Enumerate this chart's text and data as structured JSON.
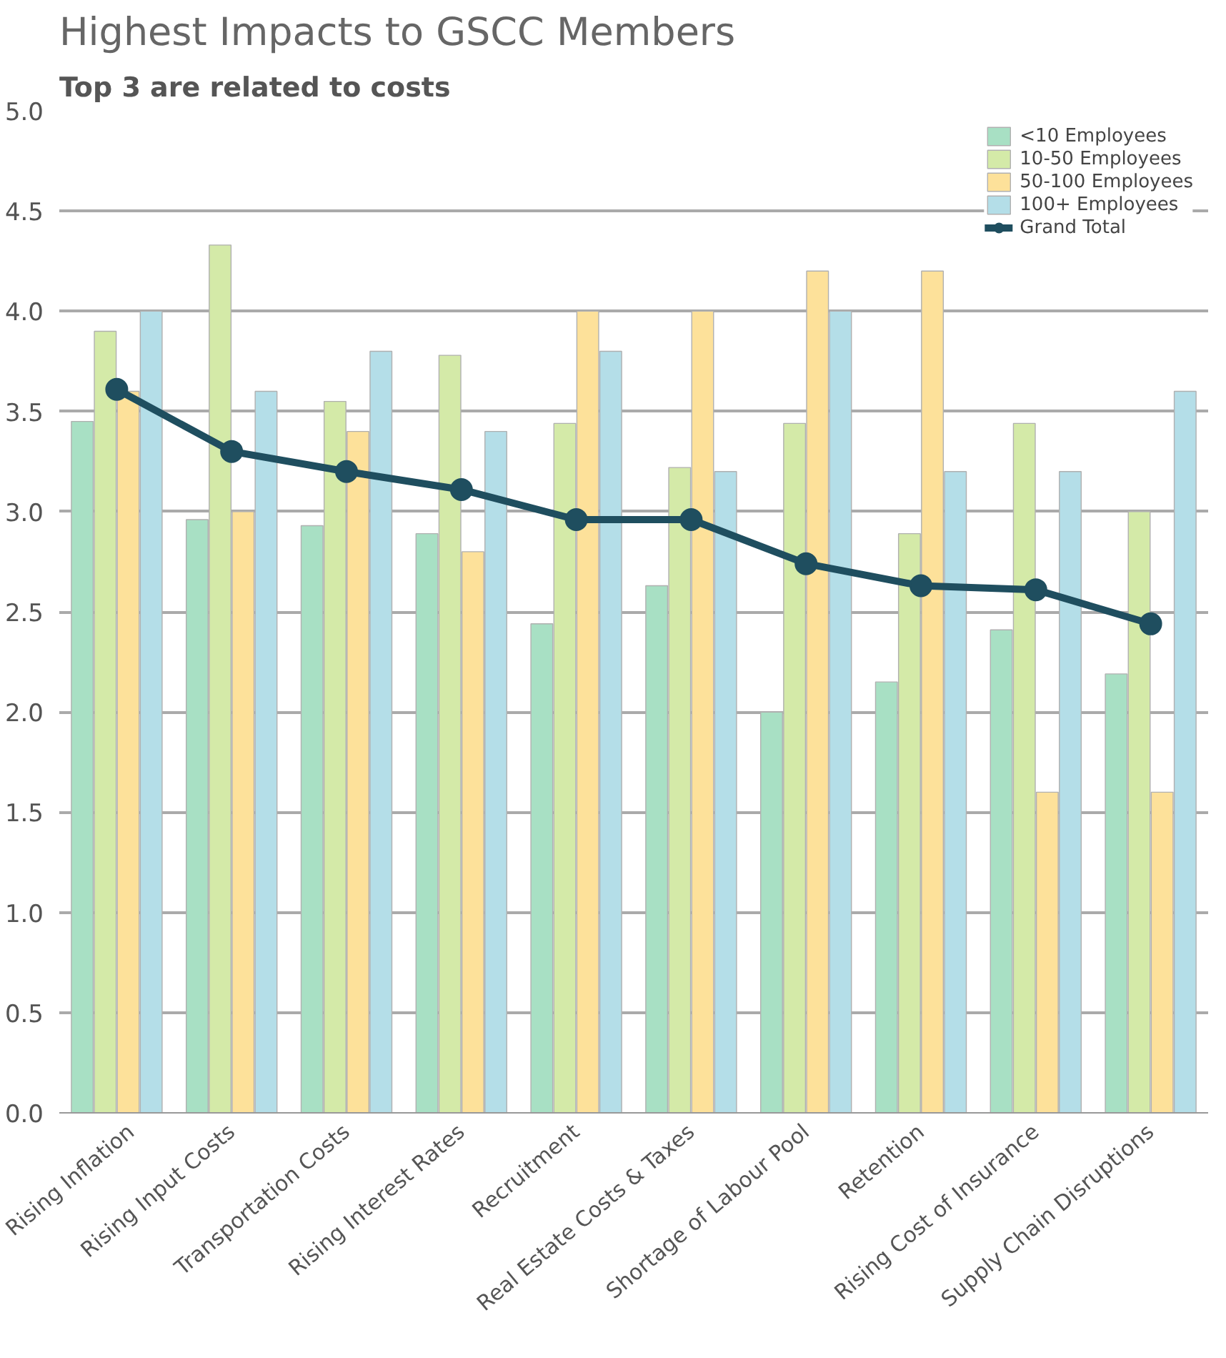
{
  "chart_data": {
    "type": "bar",
    "title": "Highest Impacts to GSCC Members",
    "subtitle": "Top 3 are related to costs",
    "categories": [
      "Rising Inflation",
      "Rising Input Costs",
      "Transportation Costs",
      "Rising Interest Rates",
      "Recruitment",
      "Real Estate Costs & Taxes",
      "Shortage of Labour Pool",
      "Retention",
      "Rising Cost of Insurance",
      "Supply Chain Disruptions"
    ],
    "series": [
      {
        "name": "<10 Employees",
        "color": "#a8e0c4",
        "values": [
          3.45,
          2.96,
          2.93,
          2.89,
          2.44,
          2.63,
          2.0,
          2.15,
          2.41,
          2.19
        ]
      },
      {
        "name": "10-50 Employees",
        "color": "#d4eaa8",
        "values": [
          3.9,
          4.33,
          3.55,
          3.78,
          3.44,
          3.22,
          3.44,
          2.89,
          3.44,
          3.0
        ]
      },
      {
        "name": "50-100 Employees",
        "color": "#fde19a",
        "values": [
          3.6,
          3.0,
          3.4,
          2.8,
          4.0,
          4.0,
          4.2,
          4.2,
          1.6,
          1.6
        ]
      },
      {
        "name": "100+ Employees",
        "color": "#b4dee8",
        "values": [
          4.0,
          3.6,
          3.8,
          3.4,
          3.8,
          3.2,
          4.0,
          3.2,
          3.2,
          3.6
        ]
      },
      {
        "name": "Grand Total",
        "color": "#1f4e5f",
        "type": "line",
        "marker": "circle",
        "values": [
          3.61,
          3.3,
          3.2,
          3.11,
          2.96,
          2.96,
          2.74,
          2.63,
          2.61,
          2.44
        ]
      }
    ],
    "ylim": [
      0,
      5
    ],
    "yticks": [
      {
        "value": 0,
        "label": "0.0"
      },
      {
        "value": 0.5,
        "label": "0.5"
      },
      {
        "value": 1,
        "label": "1.0"
      },
      {
        "value": 1.5,
        "label": "1.5"
      },
      {
        "value": 2,
        "label": "2.0"
      },
      {
        "value": 2.5,
        "label": "2.5"
      },
      {
        "value": 3,
        "label": "3.0"
      },
      {
        "value": 3.5,
        "label": "3.5"
      },
      {
        "value": 4,
        "label": "4.0"
      },
      {
        "value": 4.5,
        "label": "4.5"
      },
      {
        "value": 5,
        "label": "5.0"
      }
    ],
    "grid": "y",
    "legend": "top right"
  }
}
